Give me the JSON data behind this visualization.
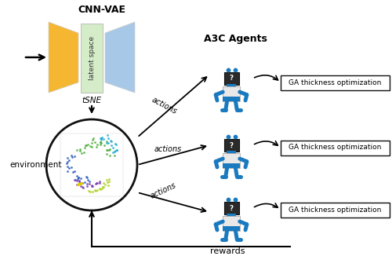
{
  "title_cnn_vae": "CNN-VAE",
  "title_a3c": "A3C Agents",
  "label_latent": "latent space",
  "label_tsne": "tSNE",
  "label_env": "environment",
  "label_rewards": "rewards",
  "label_actions": "actions",
  "label_ga": "GA thickness optimization",
  "bg_color": "#ffffff",
  "arrow_color": "#111111",
  "robot_blue": "#1a7abf",
  "robot_body": "#e8e8e8",
  "encoder_color_top": "#f5c842",
  "encoder_color_bot": "#f0a820",
  "decoder_color": "#a0c8e8",
  "latent_color": "#d4ecc8",
  "circle_color": "#111111",
  "box_color": "#ffffff",
  "box_edge": "#111111",
  "tsne_colors": [
    "#44aa44",
    "#336699",
    "#6633aa",
    "#aacc00",
    "#22aaaa",
    "#ddaa00"
  ]
}
